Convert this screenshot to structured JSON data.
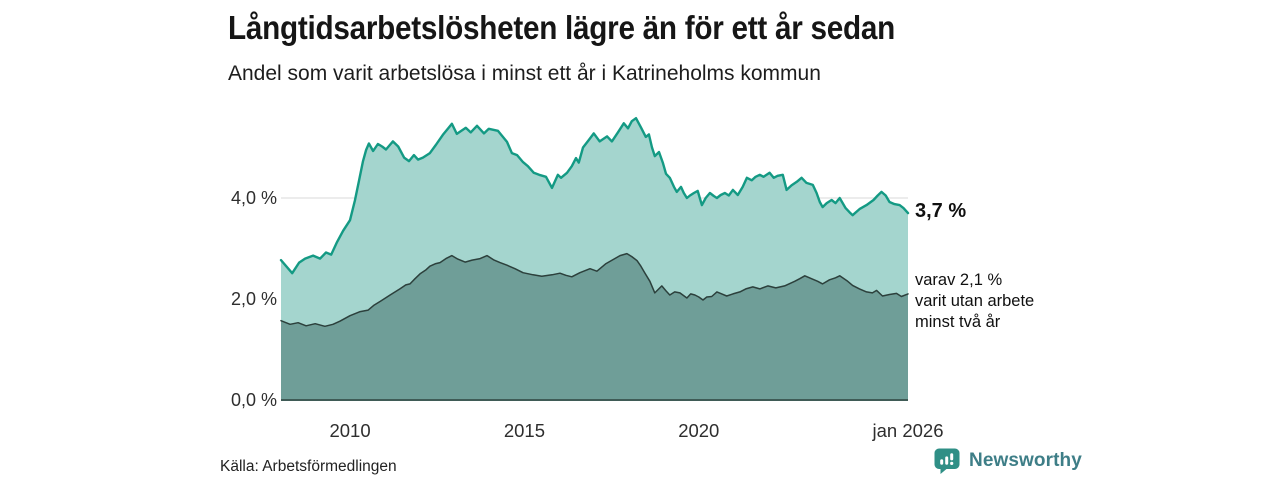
{
  "title": "Långtidsarbetslösheten lägre än för ett år sedan",
  "subtitle": "Andel som varit arbetslösa i minst ett år i Katrineholms kommun",
  "source": "Källa: Arbetsförmedlingen",
  "branding": {
    "name": "Newsworthy",
    "icon": "newsworthy-chart-bubble-icon",
    "text_color": "#3e7e87",
    "icon_color": "#2f8f86"
  },
  "annotations": {
    "total_label": "3,7 %",
    "subset_lines": [
      "varav 2,1 %",
      "varit utan arbete",
      "minst två år"
    ]
  },
  "colors": {
    "series1_fill": "#a4d5ce",
    "series1_stroke": "#149a84",
    "series2_fill": "#6f9e98",
    "series2_stroke": "#2c403c",
    "grid": "#d9d9d9",
    "baseline": "#3f5b56",
    "text_dark": "#161616"
  },
  "chart_data": {
    "type": "area",
    "title": "Långtidsarbetslösheten lägre än för ett år sedan",
    "subtitle": "Andel som varit arbetslösa i minst ett år i Katrineholms kommun",
    "unit": "%",
    "x_axis": {
      "label": "",
      "range": [
        2008.02,
        2026.0
      ],
      "ticks": [
        "2010",
        "2015",
        "2020",
        "jan 2026"
      ],
      "tick_values": [
        2010,
        2015,
        2020,
        2026.0
      ]
    },
    "y_axis": {
      "label": "",
      "range": [
        0,
        5.8
      ],
      "ticks": [
        "0,0 %",
        "2,0 %",
        "4,0 %"
      ],
      "tick_values": [
        0,
        2,
        4
      ]
    },
    "grid": "horizontal",
    "legend_position": "right-annotations",
    "series": [
      {
        "name": "Andel arbetslösa minst ett år",
        "end_value": 3.7,
        "end_label": "3,7 %",
        "fill": "#a4d5ce",
        "stroke": "#149a84",
        "stroke_width": 2.4,
        "points": [
          [
            2008.02,
            2.77
          ],
          [
            2008.34,
            2.51
          ],
          [
            2008.54,
            2.72
          ],
          [
            2008.71,
            2.8
          ],
          [
            2008.94,
            2.86
          ],
          [
            2009.14,
            2.8
          ],
          [
            2009.31,
            2.92
          ],
          [
            2009.46,
            2.88
          ],
          [
            2009.63,
            3.13
          ],
          [
            2009.8,
            3.35
          ],
          [
            2010.0,
            3.56
          ],
          [
            2010.14,
            3.95
          ],
          [
            2010.26,
            4.35
          ],
          [
            2010.37,
            4.72
          ],
          [
            2010.46,
            4.95
          ],
          [
            2010.54,
            5.08
          ],
          [
            2010.66,
            4.93
          ],
          [
            2010.8,
            5.07
          ],
          [
            2010.92,
            5.02
          ],
          [
            2011.03,
            4.96
          ],
          [
            2011.23,
            5.12
          ],
          [
            2011.38,
            5.02
          ],
          [
            2011.55,
            4.8
          ],
          [
            2011.69,
            4.73
          ],
          [
            2011.83,
            4.85
          ],
          [
            2011.95,
            4.76
          ],
          [
            2012.09,
            4.8
          ],
          [
            2012.29,
            4.89
          ],
          [
            2012.46,
            5.05
          ],
          [
            2012.66,
            5.25
          ],
          [
            2012.92,
            5.47
          ],
          [
            2013.06,
            5.27
          ],
          [
            2013.32,
            5.39
          ],
          [
            2013.46,
            5.3
          ],
          [
            2013.64,
            5.43
          ],
          [
            2013.84,
            5.28
          ],
          [
            2013.98,
            5.37
          ],
          [
            2014.24,
            5.33
          ],
          [
            2014.5,
            5.11
          ],
          [
            2014.64,
            4.89
          ],
          [
            2014.79,
            4.85
          ],
          [
            2014.96,
            4.71
          ],
          [
            2015.1,
            4.63
          ],
          [
            2015.27,
            4.5
          ],
          [
            2015.42,
            4.46
          ],
          [
            2015.62,
            4.42
          ],
          [
            2015.79,
            4.2
          ],
          [
            2015.96,
            4.46
          ],
          [
            2016.05,
            4.4
          ],
          [
            2016.22,
            4.5
          ],
          [
            2016.36,
            4.63
          ],
          [
            2016.48,
            4.79
          ],
          [
            2016.56,
            4.7
          ],
          [
            2016.68,
            5.0
          ],
          [
            2016.85,
            5.15
          ],
          [
            2016.99,
            5.28
          ],
          [
            2017.16,
            5.12
          ],
          [
            2017.37,
            5.22
          ],
          [
            2017.51,
            5.12
          ],
          [
            2017.68,
            5.3
          ],
          [
            2017.85,
            5.48
          ],
          [
            2017.97,
            5.38
          ],
          [
            2018.08,
            5.52
          ],
          [
            2018.2,
            5.58
          ],
          [
            2018.34,
            5.4
          ],
          [
            2018.48,
            5.21
          ],
          [
            2018.57,
            5.26
          ],
          [
            2018.66,
            5.0
          ],
          [
            2018.74,
            4.83
          ],
          [
            2018.86,
            4.91
          ],
          [
            2018.97,
            4.7
          ],
          [
            2019.06,
            4.48
          ],
          [
            2019.17,
            4.4
          ],
          [
            2019.29,
            4.22
          ],
          [
            2019.37,
            4.12
          ],
          [
            2019.49,
            4.22
          ],
          [
            2019.57,
            4.1
          ],
          [
            2019.66,
            4.0
          ],
          [
            2019.75,
            4.05
          ],
          [
            2019.86,
            4.1
          ],
          [
            2019.97,
            4.14
          ],
          [
            2020.09,
            3.86
          ],
          [
            2020.2,
            4.0
          ],
          [
            2020.32,
            4.1
          ],
          [
            2020.43,
            4.04
          ],
          [
            2020.52,
            4.0
          ],
          [
            2020.63,
            4.06
          ],
          [
            2020.75,
            4.1
          ],
          [
            2020.86,
            4.05
          ],
          [
            2020.98,
            4.16
          ],
          [
            2021.12,
            4.06
          ],
          [
            2021.26,
            4.22
          ],
          [
            2021.38,
            4.4
          ],
          [
            2021.52,
            4.35
          ],
          [
            2021.63,
            4.42
          ],
          [
            2021.75,
            4.46
          ],
          [
            2021.86,
            4.42
          ],
          [
            2022.03,
            4.5
          ],
          [
            2022.15,
            4.4
          ],
          [
            2022.26,
            4.44
          ],
          [
            2022.41,
            4.46
          ],
          [
            2022.52,
            4.16
          ],
          [
            2022.66,
            4.25
          ],
          [
            2022.81,
            4.32
          ],
          [
            2022.95,
            4.4
          ],
          [
            2023.09,
            4.3
          ],
          [
            2023.27,
            4.26
          ],
          [
            2023.38,
            4.1
          ],
          [
            2023.47,
            3.92
          ],
          [
            2023.55,
            3.82
          ],
          [
            2023.67,
            3.9
          ],
          [
            2023.81,
            3.96
          ],
          [
            2023.92,
            3.9
          ],
          [
            2024.04,
            4.0
          ],
          [
            2024.21,
            3.8
          ],
          [
            2024.32,
            3.72
          ],
          [
            2024.41,
            3.66
          ],
          [
            2024.61,
            3.78
          ],
          [
            2024.81,
            3.86
          ],
          [
            2025.01,
            3.96
          ],
          [
            2025.13,
            4.05
          ],
          [
            2025.24,
            4.12
          ],
          [
            2025.36,
            4.05
          ],
          [
            2025.47,
            3.92
          ],
          [
            2025.61,
            3.88
          ],
          [
            2025.76,
            3.86
          ],
          [
            2025.87,
            3.8
          ],
          [
            2026.0,
            3.7
          ]
        ]
      },
      {
        "name": "varav arbetslösa minst två år",
        "end_value": 2.1,
        "end_label": "varav 2,1 % varit utan arbete minst två år",
        "fill": "#6f9e98",
        "stroke": "#2c403c",
        "stroke_width": 1.5,
        "points": [
          [
            2008.02,
            1.57
          ],
          [
            2008.28,
            1.5
          ],
          [
            2008.51,
            1.53
          ],
          [
            2008.74,
            1.47
          ],
          [
            2009.0,
            1.51
          ],
          [
            2009.28,
            1.46
          ],
          [
            2009.51,
            1.5
          ],
          [
            2009.71,
            1.56
          ],
          [
            2010.0,
            1.67
          ],
          [
            2010.29,
            1.75
          ],
          [
            2010.52,
            1.78
          ],
          [
            2010.69,
            1.88
          ],
          [
            2010.86,
            1.95
          ],
          [
            2011.15,
            2.08
          ],
          [
            2011.43,
            2.2
          ],
          [
            2011.6,
            2.28
          ],
          [
            2011.72,
            2.3
          ],
          [
            2011.86,
            2.4
          ],
          [
            2012.01,
            2.5
          ],
          [
            2012.18,
            2.58
          ],
          [
            2012.29,
            2.65
          ],
          [
            2012.46,
            2.7
          ],
          [
            2012.58,
            2.72
          ],
          [
            2012.75,
            2.8
          ],
          [
            2012.92,
            2.86
          ],
          [
            2013.09,
            2.79
          ],
          [
            2013.3,
            2.73
          ],
          [
            2013.5,
            2.77
          ],
          [
            2013.73,
            2.8
          ],
          [
            2013.93,
            2.86
          ],
          [
            2014.13,
            2.77
          ],
          [
            2014.3,
            2.72
          ],
          [
            2014.5,
            2.67
          ],
          [
            2014.73,
            2.6
          ],
          [
            2014.96,
            2.52
          ],
          [
            2015.25,
            2.48
          ],
          [
            2015.5,
            2.45
          ],
          [
            2015.79,
            2.48
          ],
          [
            2016.02,
            2.51
          ],
          [
            2016.19,
            2.47
          ],
          [
            2016.36,
            2.44
          ],
          [
            2016.59,
            2.52
          ],
          [
            2016.88,
            2.6
          ],
          [
            2017.08,
            2.55
          ],
          [
            2017.34,
            2.7
          ],
          [
            2017.54,
            2.78
          ],
          [
            2017.74,
            2.86
          ],
          [
            2017.94,
            2.9
          ],
          [
            2018.08,
            2.84
          ],
          [
            2018.23,
            2.76
          ],
          [
            2018.34,
            2.65
          ],
          [
            2018.45,
            2.52
          ],
          [
            2018.6,
            2.35
          ],
          [
            2018.74,
            2.12
          ],
          [
            2018.94,
            2.26
          ],
          [
            2019.06,
            2.16
          ],
          [
            2019.17,
            2.08
          ],
          [
            2019.31,
            2.14
          ],
          [
            2019.46,
            2.12
          ],
          [
            2019.66,
            2.02
          ],
          [
            2019.77,
            2.1
          ],
          [
            2019.89,
            2.08
          ],
          [
            2020.0,
            2.04
          ],
          [
            2020.12,
            1.98
          ],
          [
            2020.23,
            2.04
          ],
          [
            2020.37,
            2.05
          ],
          [
            2020.52,
            2.14
          ],
          [
            2020.66,
            2.1
          ],
          [
            2020.8,
            2.06
          ],
          [
            2020.98,
            2.1
          ],
          [
            2021.18,
            2.14
          ],
          [
            2021.35,
            2.2
          ],
          [
            2021.55,
            2.24
          ],
          [
            2021.75,
            2.2
          ],
          [
            2021.98,
            2.26
          ],
          [
            2022.21,
            2.22
          ],
          [
            2022.46,
            2.26
          ],
          [
            2022.75,
            2.35
          ],
          [
            2022.89,
            2.4
          ],
          [
            2023.04,
            2.46
          ],
          [
            2023.24,
            2.4
          ],
          [
            2023.41,
            2.35
          ],
          [
            2023.55,
            2.3
          ],
          [
            2023.75,
            2.38
          ],
          [
            2023.92,
            2.42
          ],
          [
            2024.04,
            2.46
          ],
          [
            2024.27,
            2.35
          ],
          [
            2024.41,
            2.27
          ],
          [
            2024.61,
            2.2
          ],
          [
            2024.81,
            2.14
          ],
          [
            2024.98,
            2.12
          ],
          [
            2025.1,
            2.17
          ],
          [
            2025.27,
            2.06
          ],
          [
            2025.47,
            2.09
          ],
          [
            2025.67,
            2.11
          ],
          [
            2025.81,
            2.05
          ],
          [
            2026.0,
            2.1
          ]
        ]
      }
    ]
  }
}
